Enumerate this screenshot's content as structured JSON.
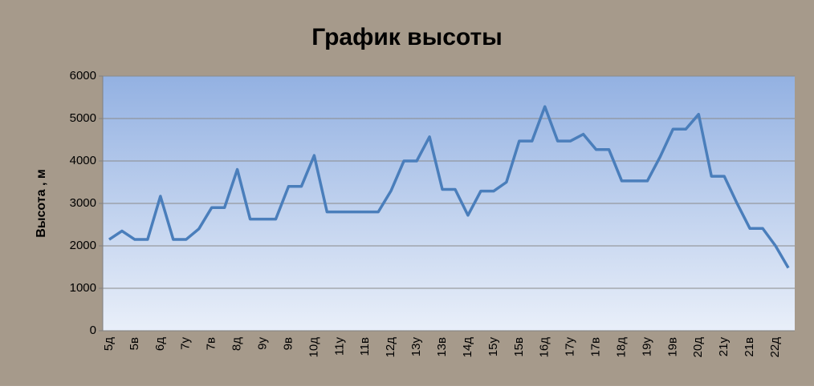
{
  "chart_data": {
    "type": "line",
    "title": "График высоты",
    "y_label": "Высота , м",
    "categories": [
      "5д",
      null,
      "5в",
      null,
      "6д",
      null,
      "7у",
      null,
      "7в",
      null,
      "8д",
      null,
      "9у",
      null,
      "9в",
      null,
      "10д",
      null,
      "11у",
      null,
      "11в",
      null,
      "12д",
      null,
      "13у",
      null,
      "13в",
      null,
      "14д",
      null,
      "15у",
      null,
      "15в",
      null,
      "16д",
      null,
      "17у",
      null,
      "17в",
      null,
      "18д",
      null,
      "19у",
      null,
      "19в",
      null,
      "20д",
      null,
      "21у",
      null,
      "21в",
      null,
      "22д",
      null
    ],
    "series": [
      {
        "name": "Высота",
        "color": "#4a7ebb",
        "values": [
          2150,
          2350,
          2150,
          2150,
          3170,
          2150,
          2150,
          2400,
          2900,
          2900,
          3800,
          2630,
          2630,
          2630,
          3400,
          3400,
          4130,
          2800,
          2800,
          2800,
          2800,
          2800,
          3300,
          4000,
          4000,
          4570,
          3330,
          3330,
          2720,
          3290,
          3290,
          3500,
          4470,
          4470,
          5280,
          4470,
          4470,
          4630,
          4270,
          4270,
          3530,
          3530,
          3530,
          4100,
          4750,
          4750,
          5100,
          3640,
          3640,
          3000,
          2410,
          2410,
          2000,
          1480
        ]
      }
    ],
    "ylim": [
      0,
      6000
    ],
    "yticks": [
      0,
      1000,
      2000,
      3000,
      4000,
      5000,
      6000
    ],
    "grid": true
  }
}
